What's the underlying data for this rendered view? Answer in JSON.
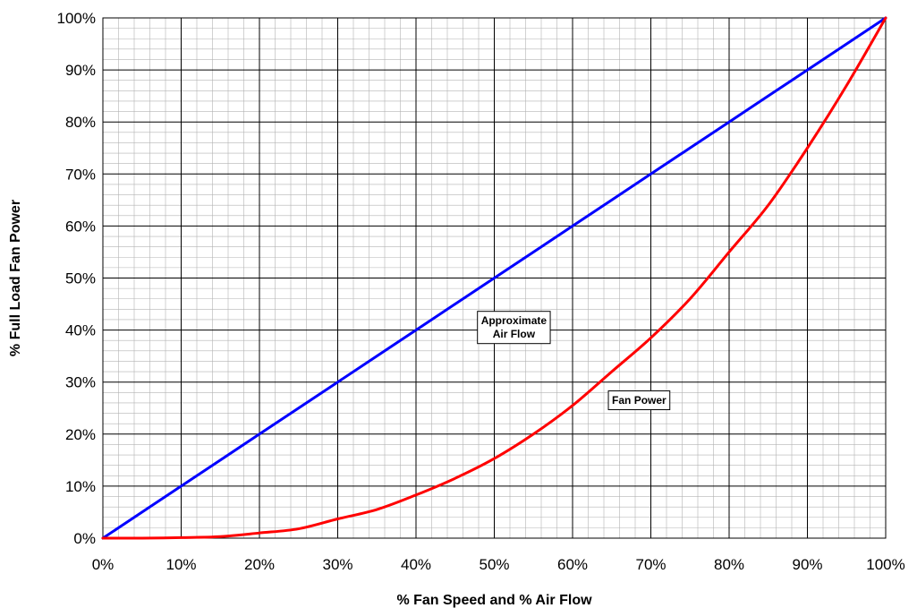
{
  "chart_data": {
    "type": "line",
    "title": "",
    "xlabel": "% Fan Speed and % Air Flow",
    "ylabel": "% Full Load Fan Power",
    "xlim": [
      0,
      100
    ],
    "ylim": [
      0,
      100
    ],
    "x_ticks": [
      "0%",
      "10%",
      "20%",
      "30%",
      "40%",
      "50%",
      "60%",
      "70%",
      "80%",
      "90%",
      "100%"
    ],
    "y_ticks": [
      "0%",
      "10%",
      "20%",
      "30%",
      "40%",
      "50%",
      "60%",
      "70%",
      "80%",
      "90%",
      "100%"
    ],
    "grid": "major and minor",
    "series": [
      {
        "name": "Approximate Air Flow",
        "color": "#0000ff",
        "x": [
          0,
          10,
          20,
          30,
          40,
          50,
          60,
          70,
          80,
          90,
          100
        ],
        "values": [
          0,
          10,
          20,
          30,
          40,
          50,
          60,
          70,
          80,
          90,
          100
        ]
      },
      {
        "name": "Fan Power",
        "color": "#ff0000",
        "x": [
          0,
          5,
          10,
          15,
          20,
          25,
          30,
          35,
          40,
          45,
          50,
          55,
          60,
          65,
          70,
          75,
          80,
          85,
          90,
          95,
          100
        ],
        "values": [
          0,
          0,
          0.1,
          0.3,
          1.0,
          1.8,
          3.7,
          5.5,
          8.3,
          11.5,
          15.3,
          20,
          25.5,
          32,
          38.5,
          46,
          55,
          64,
          75,
          87,
          100
        ]
      }
    ],
    "annotations": [
      {
        "lines": [
          "Approximate",
          "Air Flow"
        ],
        "x": 52.5,
        "y": 40.5
      },
      {
        "lines": [
          "Fan Power"
        ],
        "x": 68.5,
        "y": 26.5
      }
    ]
  }
}
